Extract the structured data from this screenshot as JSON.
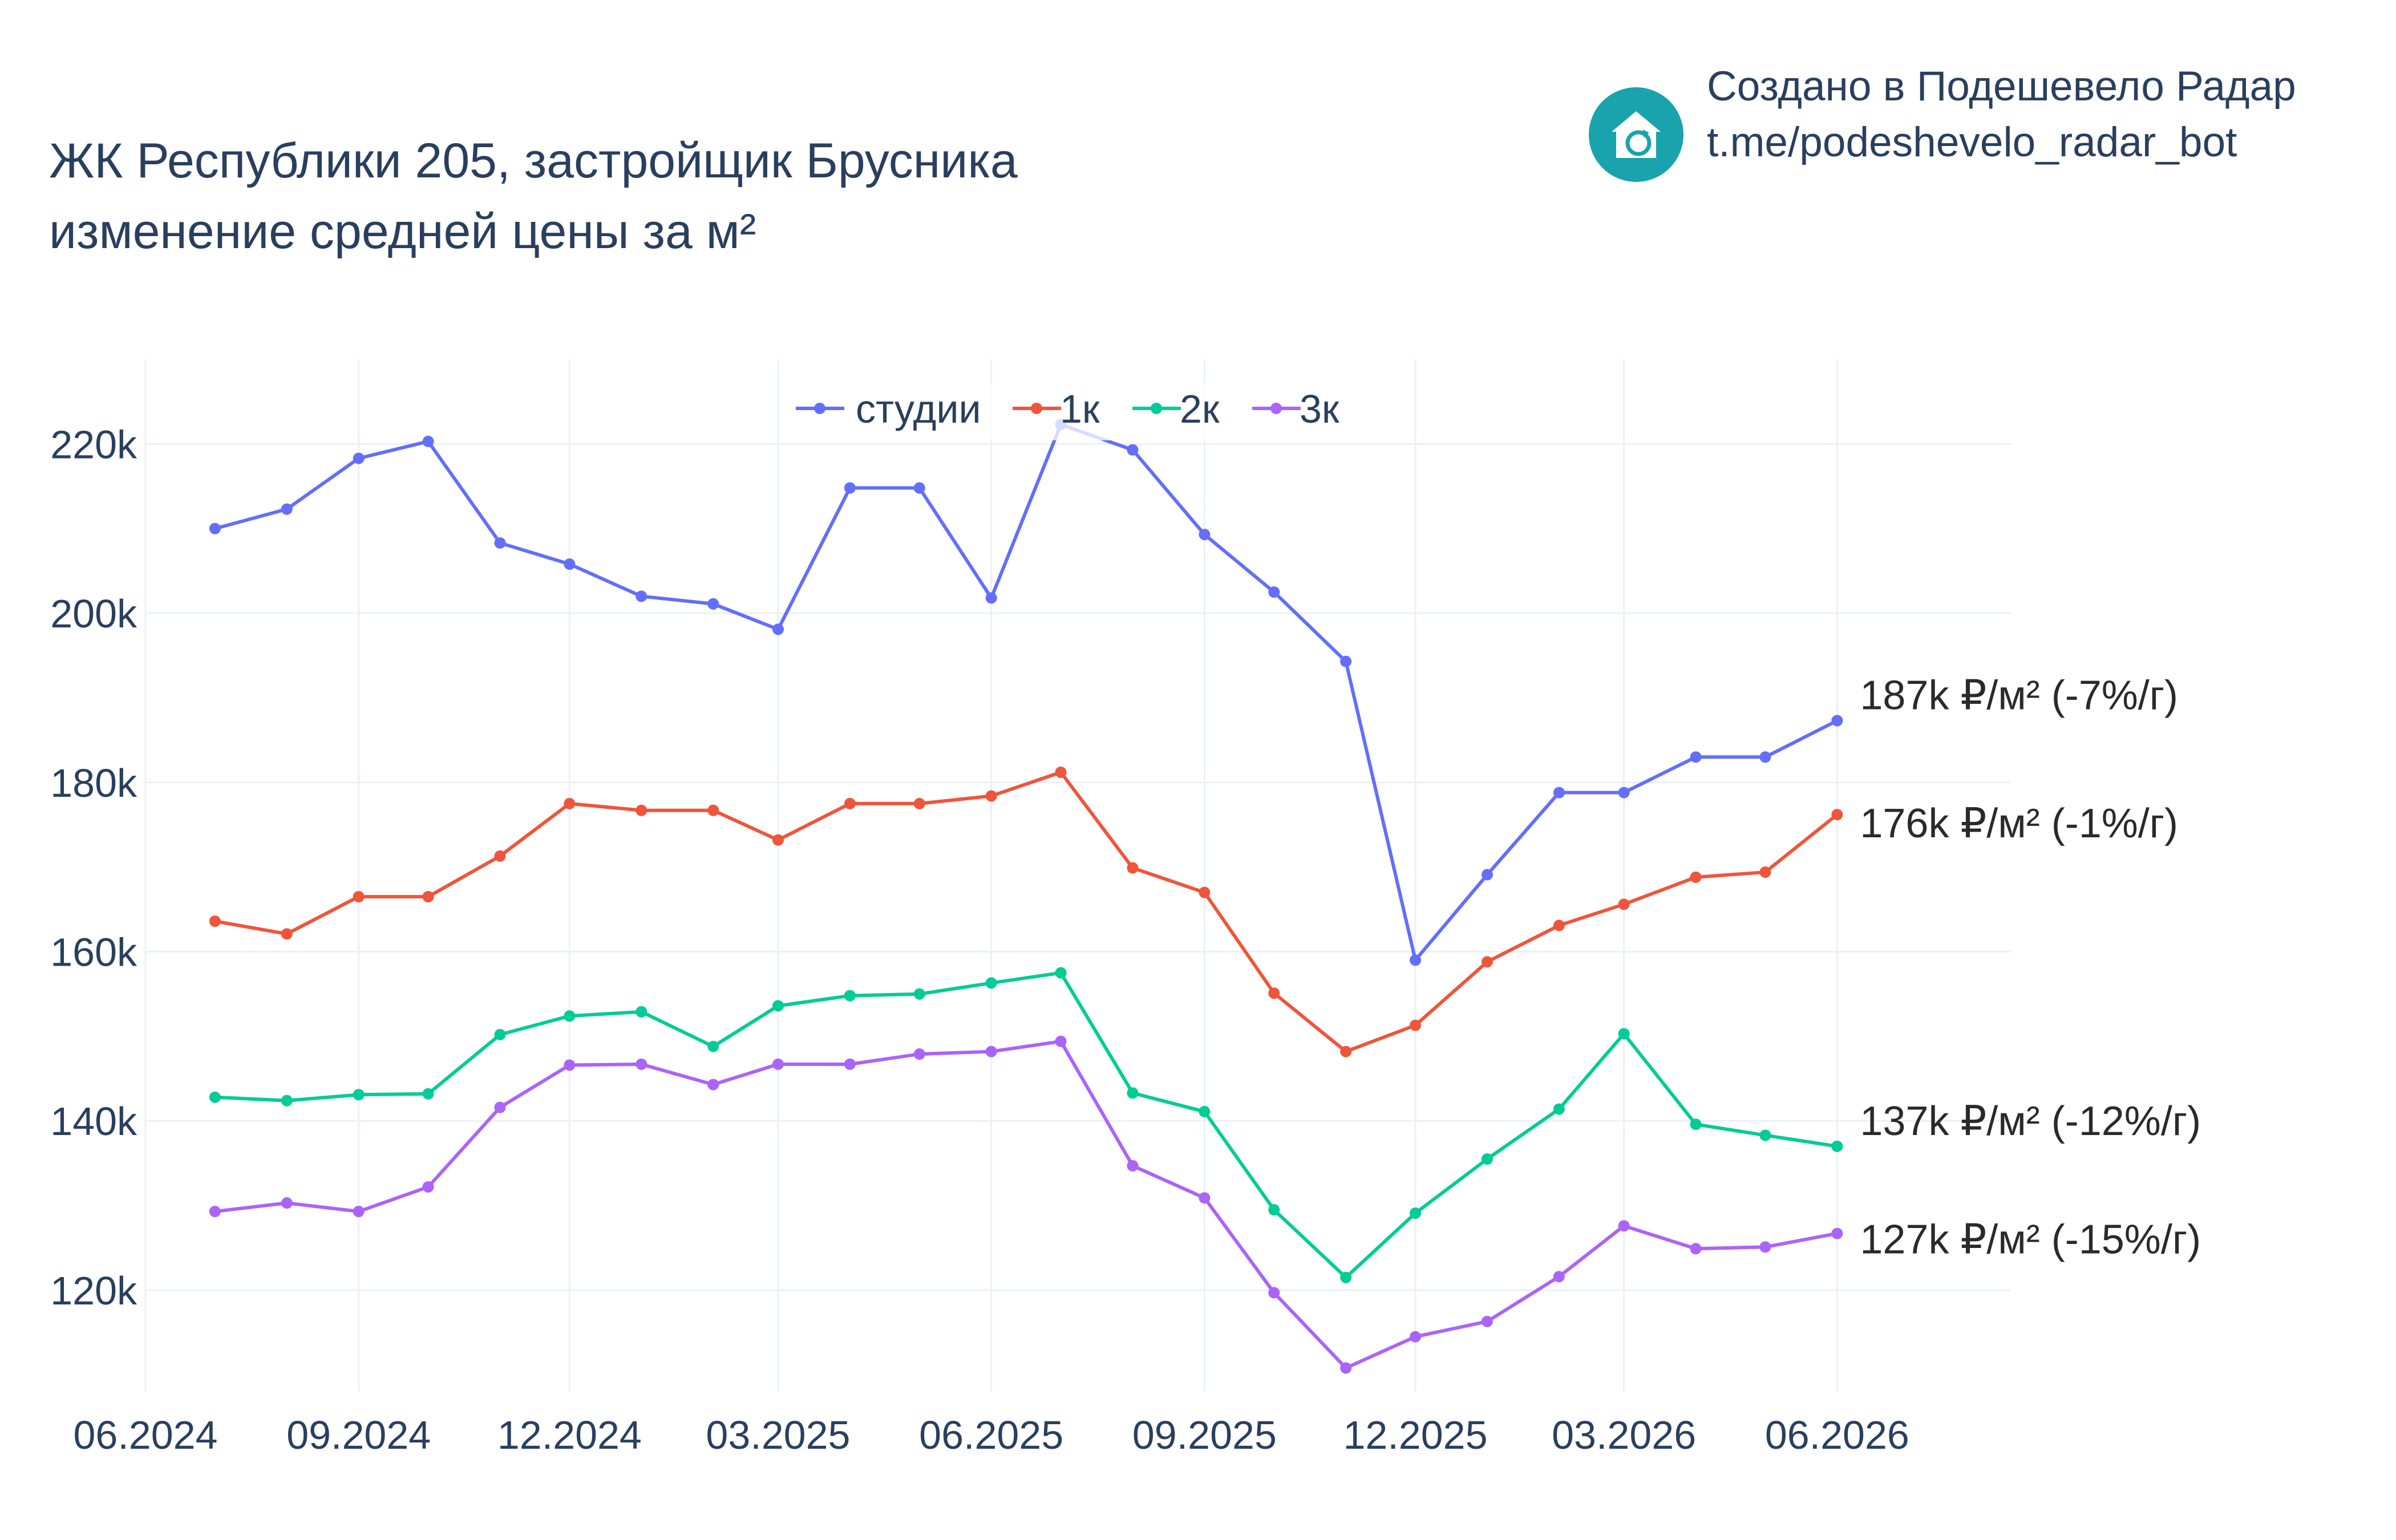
{
  "title": {
    "line1": "ЖК Республики 205, застройщик Брусника",
    "line2": "изменение средней цены за м²"
  },
  "brand": {
    "line1": "Создано в Подешевело Радар",
    "line2": "t.me/podeshevelo_radar_bot",
    "logo_icon": "house-refresh-icon",
    "logo_color": "#18a3ad"
  },
  "chart_data": {
    "type": "line",
    "x": [
      "2024-07",
      "2024-08",
      "2024-09",
      "2024-10",
      "2024-11",
      "2024-12",
      "2025-01",
      "2025-02",
      "2025-03",
      "2025-04",
      "2025-05",
      "2025-06",
      "2025-07",
      "2025-08",
      "2025-09",
      "2025-10",
      "2025-11",
      "2025-12",
      "2026-01",
      "2026-02",
      "2026-03",
      "2026-04",
      "2026-05",
      "2026-06"
    ],
    "x_ticks": [
      "06.2024",
      "09.2024",
      "12.2024",
      "03.2025",
      "06.2025",
      "09.2025",
      "12.2025",
      "03.2026",
      "06.2026"
    ],
    "y_ticks": [
      "120k",
      "140k",
      "160k",
      "180k",
      "200k",
      "220k"
    ],
    "y_tick_values": [
      120000,
      140000,
      160000,
      180000,
      200000,
      220000
    ],
    "ylim": [
      108000,
      230000
    ],
    "xlim": [
      "2024-06-01",
      "2026-08-15"
    ],
    "grid": true,
    "legend_position": "top-center",
    "series": [
      {
        "name": "студии",
        "color": "#636efa",
        "values": [
          210000,
          212300,
          218300,
          220300,
          208300,
          205800,
          202000,
          201100,
          198100,
          214800,
          214800,
          201800,
          222300,
          219300,
          209300,
          202500,
          194300,
          159000,
          169100,
          178800,
          178800,
          183000,
          183000,
          187300
        ],
        "end_label": "187k ₽/м² (-7%/г)"
      },
      {
        "name": "1к",
        "color": "#ef553b",
        "values": [
          163600,
          162100,
          166500,
          166500,
          171300,
          177500,
          176700,
          176700,
          173200,
          177500,
          177500,
          178400,
          181200,
          169900,
          167000,
          155100,
          148200,
          151300,
          158800,
          163100,
          165600,
          168800,
          169400,
          176200
        ],
        "end_label": "176k ₽/м² (-1%/г)"
      },
      {
        "name": "2к",
        "color": "#00cc96",
        "values": [
          142800,
          142400,
          143100,
          143200,
          150200,
          152400,
          152900,
          148800,
          153600,
          154800,
          155000,
          156300,
          157500,
          143300,
          141100,
          129500,
          121500,
          129100,
          135500,
          141400,
          150300,
          139600,
          138300,
          137000
        ],
        "end_label": "137k ₽/м² (-12%/г)"
      },
      {
        "name": "3к",
        "color": "#ab63fa",
        "values": [
          129300,
          130300,
          129300,
          132200,
          141600,
          146600,
          146700,
          144300,
          146700,
          146700,
          147900,
          148200,
          149400,
          134700,
          130900,
          119700,
          110800,
          114500,
          116300,
          121600,
          127600,
          124900,
          125100,
          126700
        ],
        "end_label": "127k ₽/м² (-15%/г)"
      }
    ]
  }
}
